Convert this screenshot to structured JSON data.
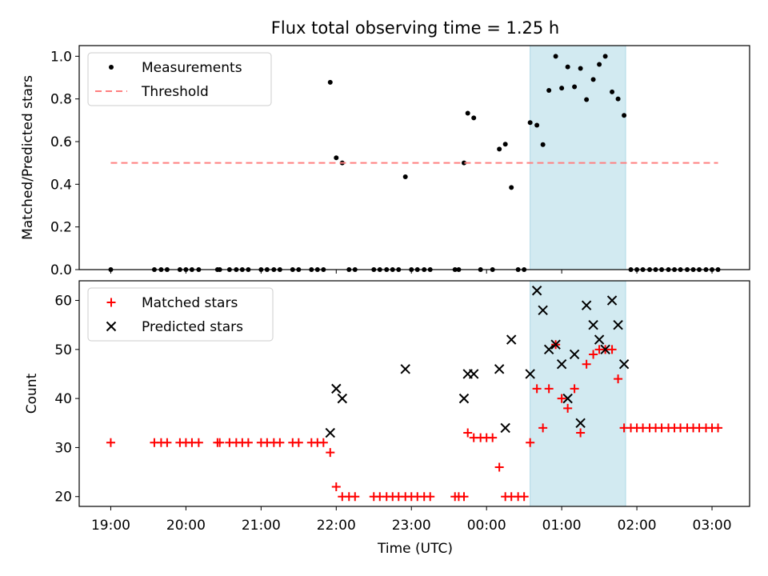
{
  "figure": {
    "title": "Flux total observing time = 1.25 h",
    "xlabel": "Time (UTC)",
    "x_tick_labels": [
      "19:00",
      "20:00",
      "21:00",
      "22:00",
      "23:00",
      "00:00",
      "01:00",
      "02:00",
      "03:00"
    ],
    "x_tick_hours": [
      19,
      20,
      21,
      22,
      23,
      24,
      25,
      26,
      27
    ],
    "xlim_hours": [
      18.58,
      27.5
    ],
    "shaded_interval_hours": [
      24.58,
      25.85
    ],
    "colors": {
      "measurement": "#000000",
      "threshold": "#ff7f7f",
      "matched": "#ff0000",
      "predicted": "#000000",
      "shade": "#add8e6"
    }
  },
  "chart_data": [
    {
      "type": "scatter",
      "ylabel": "Matched/Predicted stars",
      "ylim": [
        0,
        1.05
      ],
      "y_tick_labels": [
        "0.0",
        "0.2",
        "0.4",
        "0.6",
        "0.8",
        "1.0"
      ],
      "y_ticks": [
        0,
        0.2,
        0.4,
        0.6,
        0.8,
        1.0
      ],
      "legend_position": "top-left",
      "series": [
        {
          "name": "Measurements",
          "kind": "points",
          "x": [
            19.0,
            19.58,
            19.67,
            19.75,
            19.92,
            20.0,
            20.08,
            20.17,
            20.42,
            20.45,
            20.58,
            20.67,
            20.75,
            20.83,
            21.0,
            21.08,
            21.17,
            21.25,
            21.42,
            21.5,
            21.67,
            21.75,
            21.83,
            21.92,
            22.0,
            22.08,
            22.17,
            22.25,
            22.5,
            22.58,
            22.67,
            22.75,
            22.83,
            22.92,
            23.0,
            23.08,
            23.17,
            23.25,
            23.58,
            23.63,
            23.7,
            23.75,
            23.83,
            23.92,
            24.08,
            24.17,
            24.25,
            24.33,
            24.42,
            24.5,
            24.58,
            24.67,
            24.75,
            24.83,
            24.92,
            25.0,
            25.08,
            25.17,
            25.25,
            25.33,
            25.42,
            25.5,
            25.58,
            25.67,
            25.75,
            25.83,
            25.92,
            26.0,
            26.08,
            26.17,
            26.25,
            26.33,
            26.42,
            26.5,
            26.58,
            26.67,
            26.75,
            26.83,
            26.92,
            27.0,
            27.08
          ],
          "y": [
            0,
            0,
            0,
            0,
            0,
            0,
            0,
            0,
            0,
            0,
            0,
            0,
            0,
            0,
            0,
            0,
            0,
            0,
            0,
            0,
            0,
            0,
            0,
            0.878,
            0.524,
            0.5,
            0,
            0,
            0,
            0,
            0,
            0,
            0,
            0.435,
            0,
            0,
            0,
            0,
            0,
            0,
            0.5,
            0.733,
            0.711,
            0,
            0,
            0.565,
            0.588,
            0.385,
            0,
            0,
            0.689,
            0.677,
            0.586,
            0.84,
            1.0,
            0.851,
            0.95,
            0.857,
            0.943,
            0.797,
            0.891,
            0.962,
            1.0,
            0.833,
            0.8,
            0.723,
            0,
            0,
            0,
            0,
            0,
            0,
            0,
            0,
            0,
            0,
            0,
            0,
            0,
            0,
            0
          ]
        },
        {
          "name": "Threshold",
          "kind": "dashed-line",
          "x": [
            19.0,
            27.08
          ],
          "y": [
            0.5,
            0.5
          ]
        }
      ]
    },
    {
      "type": "scatter",
      "ylabel": "Count",
      "ylim": [
        18,
        64
      ],
      "y_tick_labels": [
        "20",
        "30",
        "40",
        "50",
        "60"
      ],
      "y_ticks": [
        20,
        30,
        40,
        50,
        60
      ],
      "legend_position": "top-left",
      "series": [
        {
          "name": "Matched stars",
          "marker": "plus",
          "x": [
            19.0,
            19.58,
            19.67,
            19.75,
            19.92,
            20.0,
            20.08,
            20.17,
            20.42,
            20.45,
            20.58,
            20.67,
            20.75,
            20.83,
            21.0,
            21.08,
            21.17,
            21.25,
            21.42,
            21.5,
            21.67,
            21.75,
            21.83,
            21.92,
            22.0,
            22.08,
            22.17,
            22.25,
            22.5,
            22.58,
            22.67,
            22.75,
            22.83,
            22.92,
            23.0,
            23.08,
            23.17,
            23.25,
            23.58,
            23.63,
            23.7,
            23.75,
            23.83,
            23.92,
            24.0,
            24.08,
            24.17,
            24.25,
            24.33,
            24.42,
            24.5,
            24.58,
            24.67,
            24.75,
            24.83,
            24.92,
            25.0,
            25.08,
            25.17,
            25.25,
            25.33,
            25.42,
            25.5,
            25.58,
            25.67,
            25.75,
            25.83,
            25.92,
            26.0,
            26.08,
            26.17,
            26.25,
            26.33,
            26.42,
            26.5,
            26.58,
            26.67,
            26.75,
            26.83,
            26.92,
            27.0,
            27.08
          ],
          "y": [
            31,
            31,
            31,
            31,
            31,
            31,
            31,
            31,
            31,
            31,
            31,
            31,
            31,
            31,
            31,
            31,
            31,
            31,
            31,
            31,
            31,
            31,
            31,
            29,
            22,
            20,
            20,
            20,
            20,
            20,
            20,
            20,
            20,
            20,
            20,
            20,
            20,
            20,
            20,
            20,
            20,
            33,
            32,
            32,
            32,
            32,
            26,
            20,
            20,
            20,
            20,
            31,
            42,
            34,
            42,
            51,
            40,
            38,
            42,
            33,
            47,
            49,
            50,
            50,
            50,
            44,
            34,
            34,
            34,
            34,
            34,
            34,
            34,
            34,
            34,
            34,
            34,
            34,
            34,
            34,
            34,
            34
          ]
        },
        {
          "name": "Predicted stars",
          "marker": "x",
          "x": [
            21.92,
            22.0,
            22.08,
            22.92,
            23.7,
            23.75,
            23.83,
            24.17,
            24.25,
            24.33,
            24.58,
            24.67,
            24.75,
            24.83,
            24.92,
            25.0,
            25.08,
            25.17,
            25.25,
            25.33,
            25.42,
            25.5,
            25.58,
            25.67,
            25.75,
            25.83
          ],
          "y": [
            33,
            42,
            40,
            46,
            40,
            45,
            45,
            46,
            34,
            52,
            45,
            62,
            58,
            50,
            51,
            47,
            40,
            49,
            35,
            59,
            55,
            52,
            50,
            60,
            55,
            47
          ]
        }
      ]
    }
  ]
}
